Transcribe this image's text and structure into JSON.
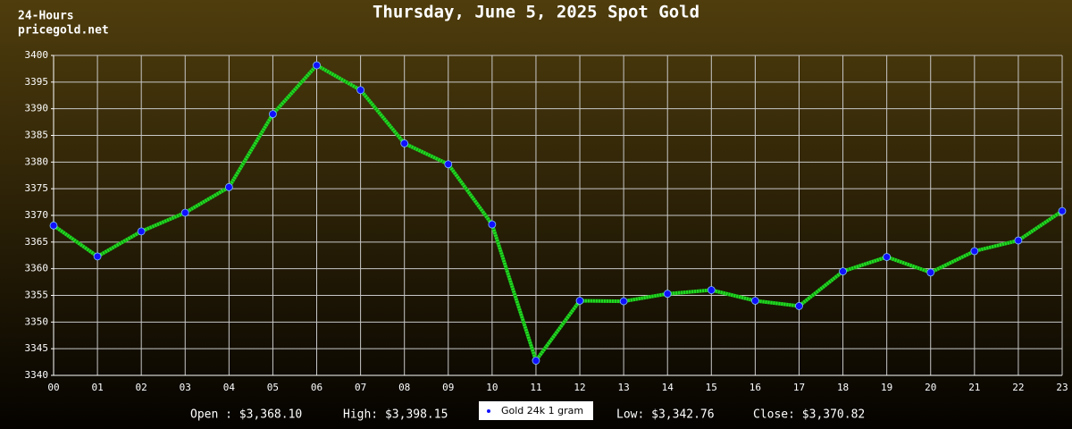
{
  "chart_data": {
    "type": "line",
    "title": "Thursday, June 5, 2025 Spot Gold",
    "period": "24-Hours",
    "source": "pricegold.net",
    "categories": [
      "00",
      "01",
      "02",
      "03",
      "04",
      "05",
      "06",
      "07",
      "08",
      "09",
      "10",
      "11",
      "12",
      "13",
      "14",
      "15",
      "16",
      "17",
      "18",
      "19",
      "20",
      "21",
      "22",
      "23"
    ],
    "series": [
      {
        "name": "Gold 24k 1 gram",
        "color": "#22dd22",
        "marker_color": "#1010ff",
        "values": [
          3368.1,
          3362.3,
          3367.0,
          3370.5,
          3375.3,
          3389.0,
          3398.15,
          3393.5,
          3383.5,
          3379.6,
          3368.3,
          3342.76,
          3354.0,
          3353.9,
          3355.3,
          3356.0,
          3354.0,
          3353.0,
          3359.5,
          3362.2,
          3359.3,
          3363.3,
          3365.3,
          3370.82
        ]
      }
    ],
    "ylim": [
      3340,
      3400
    ],
    "yticks": [
      3340,
      3345,
      3350,
      3355,
      3360,
      3365,
      3370,
      3375,
      3380,
      3385,
      3390,
      3395,
      3400
    ],
    "grid": true,
    "stats": {
      "open": "Open : $3,368.10",
      "high": "High: $3,398.15",
      "low": "Low: $3,342.76",
      "close": "Close: $3,370.82"
    }
  }
}
